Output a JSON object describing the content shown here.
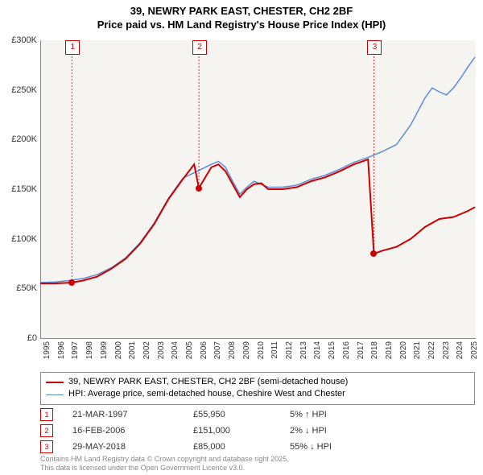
{
  "title_line1": "39, NEWRY PARK EAST, CHESTER, CH2 2BF",
  "title_line2": "Price paid vs. HM Land Registry's House Price Index (HPI)",
  "chart": {
    "type": "line",
    "background_color": "#f6f4f0",
    "ylim": [
      0,
      300000
    ],
    "ytick_step": 50000,
    "y_ticks": [
      "£0",
      "£50K",
      "£100K",
      "£150K",
      "£200K",
      "£250K",
      "£300K"
    ],
    "x_years": [
      1995,
      1996,
      1997,
      1998,
      1999,
      2000,
      2001,
      2002,
      2003,
      2004,
      2005,
      2006,
      2007,
      2008,
      2009,
      2010,
      2011,
      2012,
      2013,
      2014,
      2015,
      2016,
      2017,
      2018,
      2019,
      2020,
      2021,
      2022,
      2023,
      2024,
      2025
    ],
    "series_red": {
      "label": "39, NEWRY PARK EAST, CHESTER, CH2 2BF (semi-detached house)",
      "color": "#cc0000",
      "width": 2,
      "points": [
        [
          1995.0,
          55000
        ],
        [
          1996.0,
          55000
        ],
        [
          1997.22,
          55950
        ],
        [
          1998.0,
          58000
        ],
        [
          1999.0,
          62000
        ],
        [
          2000.0,
          70000
        ],
        [
          2001.0,
          80000
        ],
        [
          2002.0,
          95000
        ],
        [
          2003.0,
          115000
        ],
        [
          2004.0,
          140000
        ],
        [
          2005.0,
          160000
        ],
        [
          2005.8,
          175000
        ],
        [
          2006.13,
          151000
        ],
        [
          2006.5,
          160000
        ],
        [
          2007.0,
          172000
        ],
        [
          2007.5,
          175000
        ],
        [
          2008.0,
          168000
        ],
        [
          2008.5,
          155000
        ],
        [
          2009.0,
          142000
        ],
        [
          2009.5,
          150000
        ],
        [
          2010.0,
          155000
        ],
        [
          2010.5,
          156000
        ],
        [
          2011.0,
          150000
        ],
        [
          2012.0,
          150000
        ],
        [
          2013.0,
          152000
        ],
        [
          2014.0,
          158000
        ],
        [
          2015.0,
          162000
        ],
        [
          2016.0,
          168000
        ],
        [
          2017.0,
          175000
        ],
        [
          2018.0,
          180000
        ],
        [
          2018.41,
          85000
        ],
        [
          2018.42,
          85000
        ],
        [
          2019.0,
          88000
        ],
        [
          2020.0,
          92000
        ],
        [
          2021.0,
          100000
        ],
        [
          2022.0,
          112000
        ],
        [
          2023.0,
          120000
        ],
        [
          2024.0,
          122000
        ],
        [
          2025.0,
          128000
        ],
        [
          2025.5,
          132000
        ]
      ]
    },
    "series_blue": {
      "label": "HPI: Average price, semi-detached house, Cheshire West and Chester",
      "color": "#5b8dd6",
      "width": 1.5,
      "points": [
        [
          1995.0,
          56000
        ],
        [
          1996.0,
          56500
        ],
        [
          1997.0,
          58000
        ],
        [
          1998.0,
          60000
        ],
        [
          1999.0,
          64000
        ],
        [
          2000.0,
          71000
        ],
        [
          2001.0,
          81000
        ],
        [
          2002.0,
          96000
        ],
        [
          2003.0,
          116000
        ],
        [
          2004.0,
          141000
        ],
        [
          2005.0,
          161000
        ],
        [
          2006.0,
          168000
        ],
        [
          2007.0,
          175000
        ],
        [
          2007.5,
          178000
        ],
        [
          2008.0,
          172000
        ],
        [
          2008.5,
          158000
        ],
        [
          2009.0,
          145000
        ],
        [
          2009.5,
          152000
        ],
        [
          2010.0,
          158000
        ],
        [
          2011.0,
          152000
        ],
        [
          2012.0,
          152000
        ],
        [
          2013.0,
          154000
        ],
        [
          2014.0,
          160000
        ],
        [
          2015.0,
          164000
        ],
        [
          2016.0,
          170000
        ],
        [
          2017.0,
          177000
        ],
        [
          2018.0,
          182000
        ],
        [
          2019.0,
          188000
        ],
        [
          2020.0,
          195000
        ],
        [
          2021.0,
          215000
        ],
        [
          2022.0,
          242000
        ],
        [
          2022.5,
          252000
        ],
        [
          2023.0,
          248000
        ],
        [
          2023.5,
          245000
        ],
        [
          2024.0,
          252000
        ],
        [
          2024.5,
          262000
        ],
        [
          2025.0,
          273000
        ],
        [
          2025.5,
          283000
        ]
      ]
    },
    "sale_markers": [
      {
        "n": "1",
        "year": 1997.22,
        "price": 55950,
        "marker_top": 55
      },
      {
        "n": "2",
        "year": 2006.13,
        "price": 151000,
        "marker_top": 55
      },
      {
        "n": "3",
        "year": 2018.41,
        "price": 85000,
        "marker_top": 55
      }
    ]
  },
  "legend": {
    "red_label": "39, NEWRY PARK EAST, CHESTER, CH2 2BF (semi-detached house)",
    "blue_label": "HPI: Average price, semi-detached house, Cheshire West and Chester"
  },
  "sales": [
    {
      "n": "1",
      "date": "21-MAR-1997",
      "price": "£55,950",
      "hpi": "5% ↑ HPI"
    },
    {
      "n": "2",
      "date": "16-FEB-2006",
      "price": "£151,000",
      "hpi": "2% ↓ HPI"
    },
    {
      "n": "3",
      "date": "29-MAY-2018",
      "price": "£85,000",
      "hpi": "55% ↓ HPI"
    }
  ],
  "footer_line1": "Contains HM Land Registry data © Crown copyright and database right 2025.",
  "footer_line2": "This data is licensed under the Open Government Licence v3.0."
}
